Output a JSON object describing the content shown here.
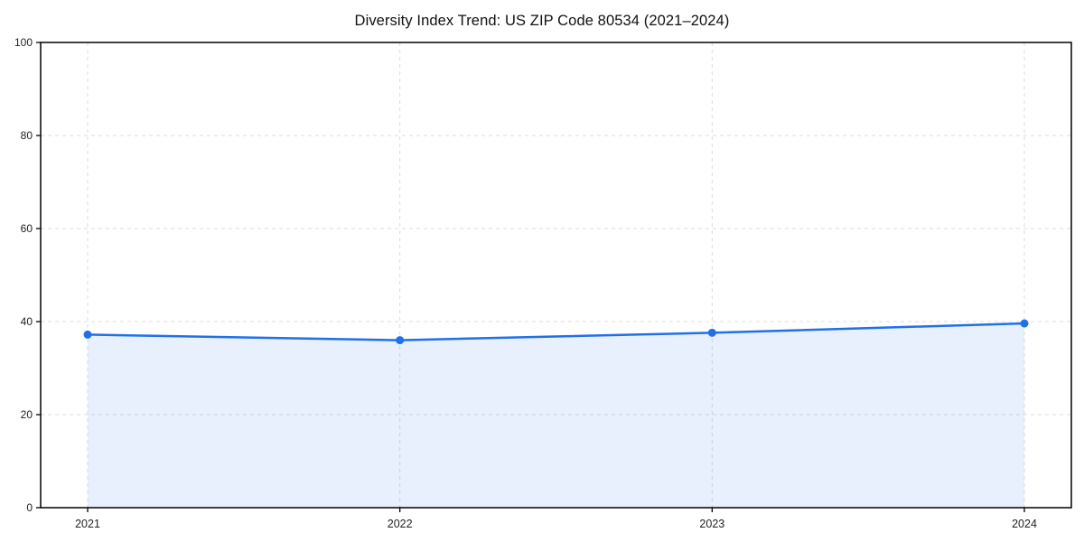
{
  "chart_data": {
    "type": "line",
    "title": "Diversity Index Trend: US ZIP Code 80534 (2021–2024)",
    "categories": [
      "2021",
      "2022",
      "2023",
      "2024"
    ],
    "series": [
      {
        "name": "Diversity Index",
        "values": [
          37.2,
          36.0,
          37.6,
          39.6
        ]
      }
    ],
    "xlabel": "",
    "ylabel": "",
    "ylim": [
      0,
      100
    ],
    "yticks": [
      0,
      20,
      40,
      60,
      80,
      100
    ],
    "grid": "dashed both",
    "legend": "none",
    "area_fill": true,
    "marker": "circle",
    "colors": {
      "line": "#2070e8",
      "marker": "#2070e8",
      "area_fill": "rgba(32,112,232,0.10)",
      "grid": "#dcdcdc",
      "spine": "#000000",
      "tick_text": "#222222",
      "title_text": "#111111",
      "background": "#ffffff"
    }
  }
}
